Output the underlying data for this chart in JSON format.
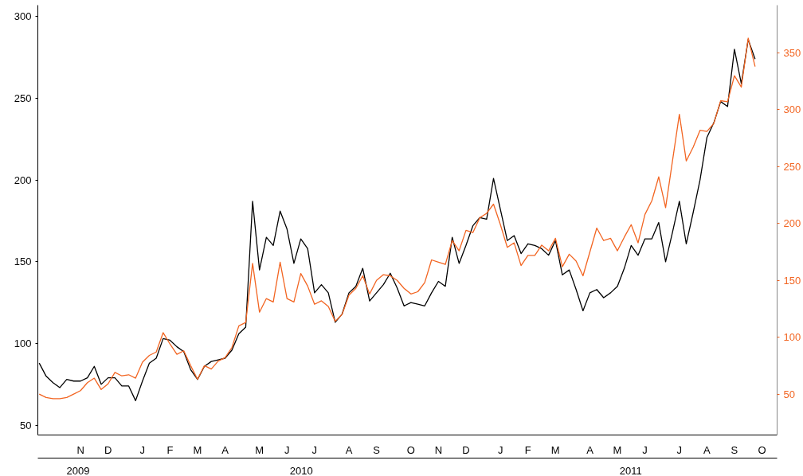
{
  "chart_data": {
    "type": "line",
    "categories": [
      null,
      null,
      null,
      null,
      null,
      null,
      "N",
      null,
      null,
      null,
      "D",
      null,
      null,
      null,
      null,
      "J",
      null,
      null,
      null,
      "F",
      null,
      null,
      null,
      "M",
      null,
      null,
      null,
      "A",
      null,
      null,
      null,
      null,
      "M",
      null,
      null,
      null,
      "J",
      null,
      null,
      null,
      "J",
      null,
      null,
      null,
      null,
      "A",
      null,
      null,
      null,
      "S",
      null,
      null,
      null,
      null,
      "O",
      null,
      null,
      null,
      "N",
      null,
      null,
      null,
      "D",
      null,
      null,
      null,
      null,
      "J",
      null,
      null,
      null,
      "F",
      null,
      null,
      null,
      "M",
      null,
      null,
      null,
      null,
      "A",
      null,
      null,
      null,
      "M",
      null,
      null,
      null,
      "J",
      null,
      null,
      null,
      null,
      "J",
      null,
      null,
      null,
      "A",
      null,
      null,
      null,
      "S",
      null,
      null,
      null,
      "O"
    ],
    "x2lim": [
      2009.38,
      2011.4
    ],
    "x2ticks": [
      {
        "value": 2009.49,
        "label": "2009"
      },
      {
        "value": 2010.1,
        "label": "2010"
      },
      {
        "value": 2011,
        "label": "2011"
      }
    ],
    "ylim": [
      44,
      307
    ],
    "yticks": [
      50,
      100,
      150,
      200,
      250,
      300
    ],
    "y2lim": [
      14,
      392
    ],
    "y2ticks": [
      50,
      100,
      150,
      200,
      250,
      300,
      350
    ],
    "series": [
      {
        "color": "#000000",
        "values": [
          88,
          80,
          76,
          73,
          78,
          77,
          77,
          79,
          86,
          75,
          79,
          79,
          74,
          74,
          65,
          77,
          88,
          91,
          103,
          102,
          98,
          95,
          84,
          78,
          86,
          89,
          90,
          91,
          96,
          106,
          110,
          187,
          145,
          165,
          160,
          181,
          170,
          149,
          164,
          158,
          131,
          136,
          131,
          113,
          118,
          131,
          135,
          146,
          126,
          131,
          136,
          143,
          134,
          123,
          125,
          124,
          123,
          131,
          138,
          135,
          165,
          149,
          160,
          172,
          177,
          176,
          201,
          182,
          163,
          166,
          155,
          161,
          160,
          158,
          154,
          163,
          142,
          145,
          133,
          120,
          131,
          133,
          128,
          131,
          135,
          146,
          160,
          154,
          164,
          164,
          174,
          150,
          168,
          187,
          161,
          180,
          200,
          226,
          235,
          248,
          245,
          280,
          259,
          286,
          274,
          null
        ]
      },
      {
        "color": "#f26522",
        "axis": "y2",
        "values": [
          50,
          47,
          46,
          46,
          47,
          50,
          53,
          60,
          64,
          54,
          59,
          69,
          66,
          67,
          64,
          78,
          84,
          87,
          104,
          94,
          85,
          88,
          75,
          63,
          75,
          72,
          79,
          82,
          91,
          110,
          113,
          165,
          122,
          134,
          131,
          166,
          134,
          131,
          156,
          145,
          129,
          132,
          127,
          114,
          120,
          137,
          143,
          154,
          138,
          150,
          155,
          154,
          150,
          143,
          138,
          140,
          148,
          168,
          166,
          164,
          185,
          176,
          194,
          192,
          205,
          209,
          217,
          199,
          179,
          183,
          163,
          172,
          172,
          181,
          176,
          187,
          162,
          173,
          167,
          154,
          175,
          196,
          185,
          187,
          176,
          188,
          199,
          183,
          208,
          220,
          241,
          214,
          255,
          296,
          255,
          267,
          282,
          281,
          288,
          308,
          307,
          330,
          320,
          363,
          338,
          null
        ]
      }
    ]
  }
}
